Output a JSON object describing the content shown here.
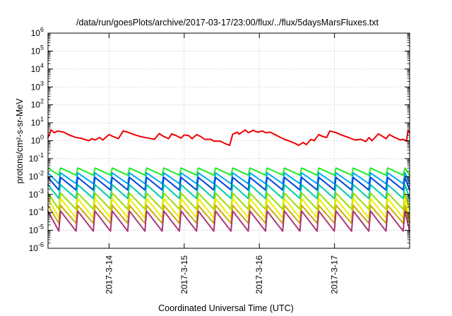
{
  "chart_data": {
    "type": "line",
    "title": "/data/run/goesPlots/archive/2017-03-17/23:00/flux/../flux/5daysMarsFluxes.txt",
    "xlabel": "Coordinated Universal Time (UTC)",
    "ylabel": "protons/cm²-s-sr-MeV",
    "yscale": "log",
    "ylim": [
      1e-06,
      1000000.0
    ],
    "xlim": [
      "2017-03-13 04:30",
      "2017-03-18 00:00"
    ],
    "x_ticks": [
      "2017-3-14",
      "2017-3-15",
      "2017-3-16",
      "2017-3-17"
    ],
    "y_ticks": [
      {
        "base": "10",
        "exp": "-6"
      },
      {
        "base": "10",
        "exp": "-5"
      },
      {
        "base": "10",
        "exp": "-4"
      },
      {
        "base": "10",
        "exp": "-3"
      },
      {
        "base": "10",
        "exp": "-2"
      },
      {
        "base": "10",
        "exp": "-1"
      },
      {
        "base": "10",
        "exp": "0"
      },
      {
        "base": "10",
        "exp": "1"
      },
      {
        "base": "10",
        "exp": "2"
      },
      {
        "base": "10",
        "exp": "3"
      },
      {
        "base": "10",
        "exp": "4"
      },
      {
        "base": "10",
        "exp": "5"
      },
      {
        "base": "10",
        "exp": "6"
      }
    ],
    "grid": true,
    "legend": "none",
    "series": [
      {
        "color": "#ee0000",
        "pattern": "smooth",
        "values": [
          [
            "2017-03-13 04:30",
            1.5
          ],
          [
            "2017-03-13 05:30",
            4.0
          ],
          [
            "2017-03-13 06:30",
            2.8
          ],
          [
            "2017-03-13 07:30",
            3.5
          ],
          [
            "2017-03-13 09:30",
            3.0
          ],
          [
            "2017-03-13 11:00",
            2.2
          ],
          [
            "2017-03-13 13:00",
            1.6
          ],
          [
            "2017-03-13 15:30",
            1.3
          ],
          [
            "2017-03-13 17:30",
            1.0
          ],
          [
            "2017-03-13 18:30",
            1.3
          ],
          [
            "2017-03-13 19:30",
            1.1
          ],
          [
            "2017-03-13 21:00",
            1.5
          ],
          [
            "2017-03-13 22:00",
            1.1
          ],
          [
            "2017-03-14 00:00",
            2.2
          ],
          [
            "2017-03-14 01:00",
            1.8
          ],
          [
            "2017-03-14 03:00",
            1.3
          ],
          [
            "2017-03-14 04:30",
            3.5
          ],
          [
            "2017-03-14 06:00",
            3.0
          ],
          [
            "2017-03-14 08:00",
            2.2
          ],
          [
            "2017-03-14 10:00",
            1.7
          ],
          [
            "2017-03-14 12:30",
            1.4
          ],
          [
            "2017-03-14 14:30",
            1.2
          ],
          [
            "2017-03-14 16:00",
            2.5
          ],
          [
            "2017-03-14 17:30",
            1.7
          ],
          [
            "2017-03-14 19:00",
            1.3
          ],
          [
            "2017-03-14 20:00",
            2.4
          ],
          [
            "2017-03-14 21:30",
            1.9
          ],
          [
            "2017-03-14 23:00",
            1.4
          ],
          [
            "2017-03-15 00:00",
            2.1
          ],
          [
            "2017-03-15 01:30",
            1.9
          ],
          [
            "2017-03-15 02:30",
            1.3
          ],
          [
            "2017-03-15 04:00",
            2.2
          ],
          [
            "2017-03-15 05:30",
            1.6
          ],
          [
            "2017-03-15 06:30",
            1.2
          ],
          [
            "2017-03-15 08:30",
            1.2
          ],
          [
            "2017-03-15 09:30",
            0.95
          ],
          [
            "2017-03-15 11:30",
            0.95
          ],
          [
            "2017-03-15 13:00",
            0.7
          ],
          [
            "2017-03-15 14:30",
            0.55
          ],
          [
            "2017-03-15 15:30",
            2.3
          ],
          [
            "2017-03-15 17:00",
            3.0
          ],
          [
            "2017-03-15 17:30",
            2.3
          ],
          [
            "2017-03-15 19:30",
            4.0
          ],
          [
            "2017-03-15 20:30",
            2.8
          ],
          [
            "2017-03-15 22:00",
            3.8
          ],
          [
            "2017-03-15 23:30",
            3.0
          ],
          [
            "2017-03-16 01:00",
            3.5
          ],
          [
            "2017-03-16 02:00",
            2.8
          ],
          [
            "2017-03-16 03:30",
            3.0
          ],
          [
            "2017-03-16 05:00",
            2.2
          ],
          [
            "2017-03-16 06:30",
            1.6
          ],
          [
            "2017-03-16 08:00",
            1.2
          ],
          [
            "2017-03-16 10:00",
            0.9
          ],
          [
            "2017-03-16 11:30",
            0.7
          ],
          [
            "2017-03-16 12:30",
            0.55
          ],
          [
            "2017-03-16 14:00",
            0.8
          ],
          [
            "2017-03-16 15:00",
            0.6
          ],
          [
            "2017-03-16 16:30",
            1.2
          ],
          [
            "2017-03-16 17:30",
            1.0
          ],
          [
            "2017-03-16 19:00",
            2.2
          ],
          [
            "2017-03-16 20:00",
            1.8
          ],
          [
            "2017-03-16 21:30",
            1.5
          ],
          [
            "2017-03-16 22:30",
            3.5
          ],
          [
            "2017-03-17 00:30",
            2.8
          ],
          [
            "2017-03-17 02:30",
            2.0
          ],
          [
            "2017-03-17 04:30",
            1.5
          ],
          [
            "2017-03-17 06:30",
            1.1
          ],
          [
            "2017-03-17 08:30",
            1.2
          ],
          [
            "2017-03-17 10:00",
            0.9
          ],
          [
            "2017-03-17 11:00",
            1.5
          ],
          [
            "2017-03-17 12:00",
            1.0
          ],
          [
            "2017-03-17 14:00",
            2.4
          ],
          [
            "2017-03-17 15:00",
            1.9
          ],
          [
            "2017-03-17 16:30",
            1.3
          ],
          [
            "2017-03-17 17:30",
            2.2
          ],
          [
            "2017-03-17 19:00",
            1.6
          ],
          [
            "2017-03-17 21:00",
            1.1
          ],
          [
            "2017-03-17 22:00",
            1.2
          ],
          [
            "2017-03-17 23:00",
            0.95
          ],
          [
            "2017-03-17 23:30",
            3.8
          ],
          [
            "2017-03-18 00:00",
            2.8
          ]
        ]
      },
      {
        "color": "#22ee22",
        "pattern": "sawtooth",
        "period_hours": 5.5,
        "peak": 0.03,
        "trough": 0.012
      },
      {
        "color": "#00aaee",
        "pattern": "sawtooth",
        "period_hours": 5.5,
        "peak": 0.016,
        "trough": 0.004
      },
      {
        "color": "#0044dd",
        "pattern": "sawtooth",
        "period_hours": 5.5,
        "peak": 0.009,
        "trough": 0.0018
      },
      {
        "color": "#00ccaa",
        "pattern": "sawtooth",
        "period_hours": 5.5,
        "peak": 0.0035,
        "trough": 0.0006
      },
      {
        "color": "#99dd00",
        "pattern": "sawtooth",
        "period_hours": 5.5,
        "peak": 0.0012,
        "trough": 0.00015
      },
      {
        "color": "#eeee00",
        "pattern": "sawtooth",
        "period_hours": 5.5,
        "peak": 0.0006,
        "trough": 5e-05
      },
      {
        "color": "#ccaa00",
        "pattern": "sawtooth",
        "period_hours": 5.5,
        "peak": 0.00025,
        "trough": 2.5e-05
      },
      {
        "color": "#aa3377",
        "pattern": "sawtooth",
        "period_hours": 5.5,
        "peak": 0.00012,
        "trough": 9e-06
      }
    ]
  }
}
